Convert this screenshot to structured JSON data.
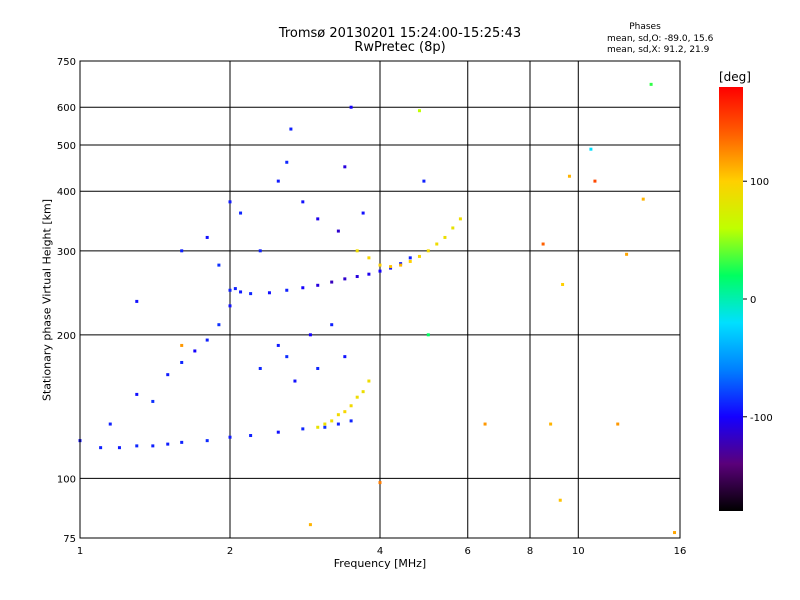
{
  "header": {
    "title": "Tromsø 20130201 15:24:00-15:25:43",
    "subtitle": "RwPretec (8p)"
  },
  "phase_stats": {
    "heading": "Phases",
    "o_line": "mean, sd,O: -89.0, 15.6",
    "x_line": "mean, sd,X:  91.2, 21.9"
  },
  "colorbar": {
    "unit_label": "[deg]",
    "range": [
      -180,
      180
    ],
    "ticks": [
      "100",
      "0",
      "-100"
    ],
    "tick_values": [
      100,
      0,
      -100
    ],
    "palette": [
      "#000000",
      "#5a007a",
      "#1400ff",
      "#0080ff",
      "#00e0ff",
      "#00ff60",
      "#c0ff00",
      "#ffd000",
      "#ff6000",
      "#ff0000"
    ]
  },
  "chart_data": {
    "type": "scatter",
    "title": "Tromsø 20130201 15:24:00-15:25:43",
    "subtitle": "RwPretec (8p)",
    "xlabel": "Frequency [MHz]",
    "ylabel": "Stationary phase Virtual Height [km]",
    "x_scale": "log",
    "y_scale": "log",
    "xlim": [
      1,
      16
    ],
    "ylim": [
      75,
      750
    ],
    "x_ticks": [
      {
        "value": 1,
        "label": "1"
      },
      {
        "value": 2,
        "label": "2"
      },
      {
        "value": 4,
        "label": "4"
      },
      {
        "value": 6,
        "label": "6"
      },
      {
        "value": 8,
        "label": "8"
      },
      {
        "value": 10,
        "label": "10"
      },
      {
        "value": 16,
        "label": "16"
      }
    ],
    "y_ticks": [
      {
        "value": 75,
        "label": "75"
      },
      {
        "value": 100,
        "label": "100"
      },
      {
        "value": 200,
        "label": "200"
      },
      {
        "value": 300,
        "label": "300"
      },
      {
        "value": 400,
        "label": "400"
      },
      {
        "value": 500,
        "label": "500"
      },
      {
        "value": 600,
        "label": "600"
      },
      {
        "value": 750,
        "label": "750"
      }
    ],
    "grid": true,
    "color_variable": "phase [deg]",
    "series": [
      {
        "mode": "O",
        "trace": "E/F1 lower",
        "x": [
          1.0,
          1.1,
          1.2,
          1.3,
          1.4,
          1.5,
          1.6,
          1.8,
          2.0,
          2.2,
          2.5,
          2.8,
          3.1,
          3.3,
          3.5
        ],
        "y": [
          120,
          116,
          116,
          117,
          117,
          118,
          119,
          120,
          122,
          123,
          125,
          127,
          128,
          130,
          132
        ],
        "phase": [
          -95,
          -90,
          -92,
          -88,
          -90,
          -91,
          -89,
          -87,
          -92,
          -90,
          -95,
          -88,
          -86,
          -90,
          -89
        ]
      },
      {
        "mode": "O",
        "trace": "E/F1 spread",
        "x": [
          1.15,
          1.3,
          1.4,
          1.5,
          1.6,
          1.7,
          1.8,
          1.9,
          2.0,
          2.05,
          2.3,
          2.5,
          2.6,
          2.7,
          2.9,
          3.0,
          3.2,
          3.4
        ],
        "y": [
          130,
          150,
          145,
          165,
          175,
          185,
          195,
          210,
          230,
          250,
          170,
          190,
          180,
          160,
          200,
          170,
          210,
          180
        ],
        "phase": [
          -90,
          -95,
          -85,
          -92,
          -88,
          -100,
          -90,
          -85,
          -95,
          -90,
          -88,
          -92,
          -86,
          -95,
          -100,
          -88,
          -90,
          -94
        ]
      },
      {
        "mode": "X",
        "trace": "F1 x-mode",
        "x": [
          3.0,
          3.1,
          3.2,
          3.3,
          3.4,
          3.5,
          3.6,
          3.7,
          3.8
        ],
        "y": [
          128,
          130,
          132,
          136,
          138,
          142,
          148,
          152,
          160
        ],
        "phase": [
          85,
          88,
          90,
          92,
          95,
          92,
          90,
          88,
          90
        ]
      },
      {
        "mode": "O",
        "trace": "F2",
        "x": [
          2.0,
          2.1,
          2.2,
          2.4,
          2.6,
          2.8,
          3.0,
          3.2,
          3.4,
          3.6,
          3.8,
          4.0,
          4.2,
          4.4,
          4.6
        ],
        "y": [
          248,
          246,
          244,
          245,
          248,
          251,
          254,
          258,
          262,
          265,
          268,
          272,
          276,
          282,
          290
        ],
        "phase": [
          -90,
          -92,
          -88,
          -95,
          -90,
          -100,
          -110,
          -120,
          -115,
          -110,
          -105,
          -100,
          -95,
          -92,
          -90
        ]
      },
      {
        "mode": "O",
        "trace": "F2 spread",
        "x": [
          1.6,
          1.8,
          1.9,
          2.0,
          2.1,
          2.3,
          2.5,
          2.6,
          2.65,
          2.8,
          3.0,
          3.3,
          3.4,
          3.5,
          3.7
        ],
        "y": [
          300,
          320,
          280,
          380,
          360,
          300,
          420,
          460,
          540,
          380,
          350,
          330,
          450,
          600,
          360
        ],
        "phase": [
          -90,
          -95,
          -85,
          -92,
          -88,
          -90,
          -92,
          -88,
          -90,
          -95,
          -105,
          -115,
          -110,
          -100,
          -95
        ]
      },
      {
        "mode": "X",
        "trace": "F2 x-mode",
        "x": [
          3.6,
          3.8,
          4.0,
          4.2,
          4.4,
          4.6,
          4.8,
          5.0,
          5.2,
          5.4,
          5.6,
          5.8
        ],
        "y": [
          300,
          290,
          280,
          278,
          280,
          285,
          292,
          300,
          310,
          320,
          335,
          350
        ],
        "phase": [
          90,
          95,
          100,
          105,
          110,
          100,
          95,
          92,
          90,
          88,
          85,
          90
        ]
      },
      {
        "mode": "noise",
        "trace": "scattered",
        "x": [
          1.3,
          1.6,
          2.9,
          4.0,
          4.8,
          4.9,
          5.0,
          6.5,
          8.5,
          8.8,
          9.2,
          9.3,
          9.6,
          10.6,
          10.8,
          12.0,
          12.5,
          13.5,
          14.0,
          15.6
        ],
        "y": [
          235,
          190,
          80,
          98,
          590,
          420,
          200,
          130,
          310,
          130,
          90,
          255,
          430,
          490,
          420,
          130,
          295,
          385,
          670,
          77
        ],
        "phase": [
          -95,
          120,
          110,
          130,
          60,
          -90,
          20,
          120,
          140,
          110,
          105,
          100,
          110,
          -20,
          150,
          120,
          115,
          110,
          30,
          115
        ]
      }
    ]
  }
}
